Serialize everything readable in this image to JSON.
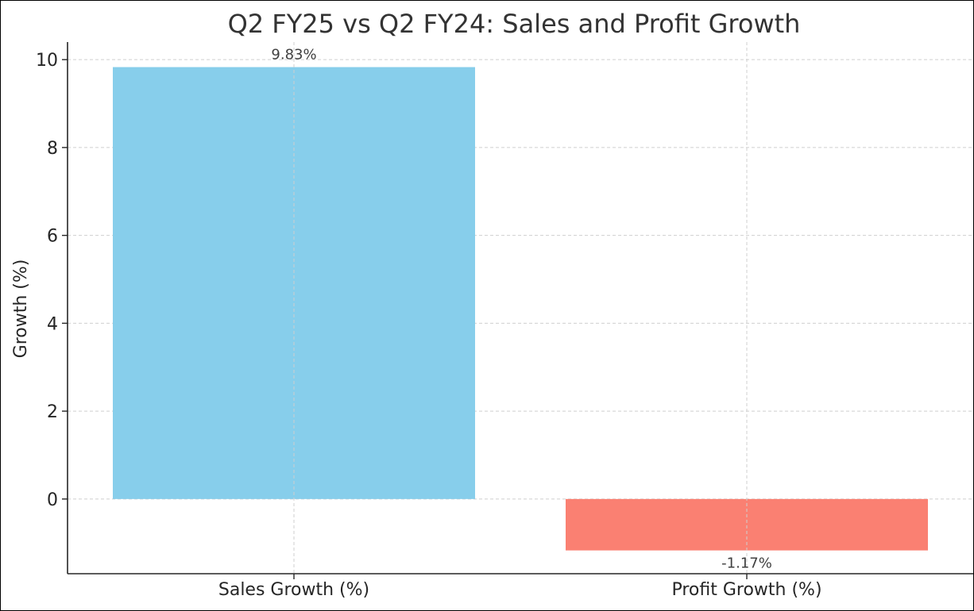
{
  "chart_data": {
    "type": "bar",
    "title": "Q2 FY25 vs Q2 FY24: Sales and Profit Growth",
    "xlabel": "",
    "ylabel": "Growth (%)",
    "categories": [
      "Sales Growth (%)",
      "Profit Growth (%)"
    ],
    "values": [
      9.83,
      -1.17
    ],
    "data_labels": [
      "9.83%",
      "-1.17%"
    ],
    "colors": [
      "#87ceeb",
      "#fa8072"
    ],
    "ylim": [
      -1.7,
      10.4
    ],
    "yticks": [
      0,
      2,
      4,
      6,
      8,
      10
    ],
    "ytick_labels": [
      "0",
      "2",
      "4",
      "6",
      "8",
      "10"
    ],
    "grid": true,
    "legend": "none"
  }
}
